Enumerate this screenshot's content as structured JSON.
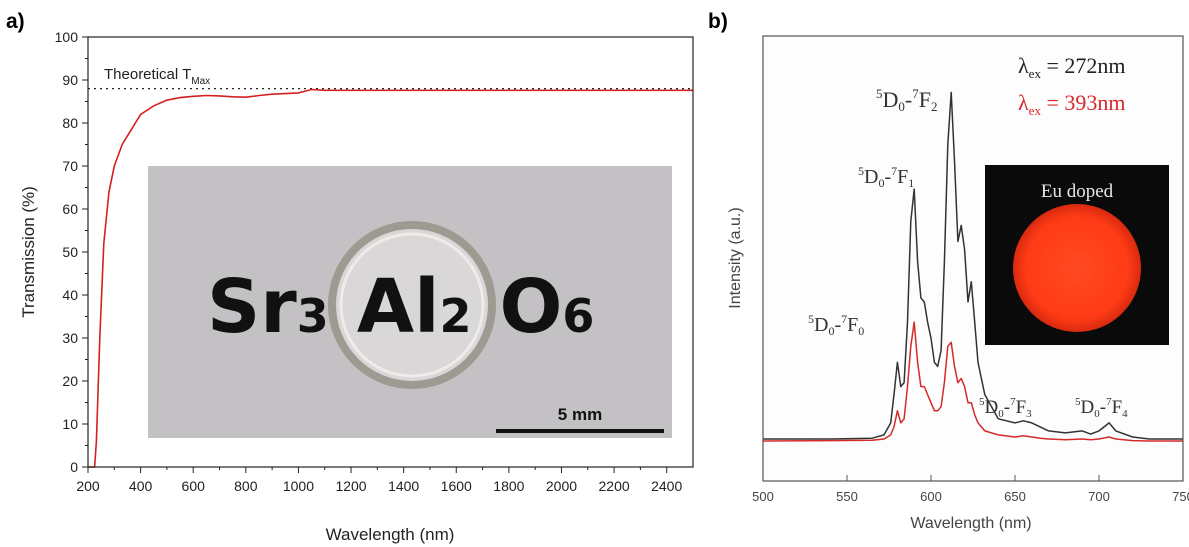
{
  "panels": {
    "a": {
      "label": "a)"
    },
    "b": {
      "label": "b)"
    }
  },
  "chart_data": [
    {
      "type": "line",
      "panel": "a",
      "xlabel": "Wavelength (nm)",
      "ylabel": "Transmission (%)",
      "xlim": [
        200,
        2500
      ],
      "ylim": [
        0,
        100
      ],
      "xticks": [
        200,
        400,
        600,
        800,
        1000,
        1200,
        1400,
        1600,
        1800,
        2000,
        2200,
        2400
      ],
      "yticks": [
        0,
        10,
        20,
        30,
        40,
        50,
        60,
        70,
        80,
        90,
        100
      ],
      "series": [
        {
          "color": "#d42020",
          "x": [
            200,
            225,
            232,
            245,
            260,
            280,
            300,
            330,
            360,
            400,
            450,
            500,
            550,
            600,
            650,
            700,
            750,
            800,
            850,
            900,
            1000,
            1050,
            1100,
            1200,
            1400,
            1600,
            1800,
            2000,
            2200,
            2400,
            2500
          ],
          "y": [
            0,
            0,
            6,
            30,
            52,
            64,
            70,
            75,
            78,
            82,
            84,
            85.3,
            85.9,
            86.2,
            86.4,
            86.3,
            86.1,
            86.0,
            86.4,
            86.7,
            87.0,
            87.8,
            87.6,
            87.6,
            87.6,
            87.6,
            87.6,
            87.6,
            87.6,
            87.6,
            87.6
          ]
        }
      ],
      "reference_line": {
        "y": 88,
        "style": "dotted",
        "label_main": "Theoretical T",
        "label_sub": "Max"
      },
      "inset": {
        "formula": [
          {
            "base": "Sr",
            "sub": "3"
          },
          {
            "base": "Al",
            "sub": "2"
          },
          {
            "base": "O",
            "sub": "6"
          }
        ],
        "scale_bar": "5 mm"
      }
    },
    {
      "type": "line",
      "panel": "b",
      "xlabel": "Wavelength (nm)",
      "ylabel": "Intensity (a.u.)",
      "xlim": [
        500,
        750
      ],
      "xticks": [
        500,
        550,
        600,
        650,
        700,
        750
      ],
      "xtick_labels": [
        "500",
        "550",
        "600",
        "650",
        "700",
        "750"
      ],
      "ylim": [
        0,
        1
      ],
      "series": [
        {
          "color": "#333333",
          "x": [
            500,
            540,
            565,
            572,
            576,
            578,
            580,
            582,
            584,
            586,
            588,
            590,
            592,
            594,
            596,
            598,
            600,
            602,
            604,
            606,
            608,
            610,
            612,
            614,
            616,
            618,
            620,
            622,
            624,
            626,
            628,
            632,
            640,
            650,
            655,
            660,
            665,
            670,
            680,
            690,
            695,
            700,
            706,
            710,
            720,
            730,
            750
          ],
          "y": [
            0.01,
            0.01,
            0.012,
            0.02,
            0.05,
            0.12,
            0.2,
            0.14,
            0.15,
            0.3,
            0.55,
            0.63,
            0.45,
            0.36,
            0.35,
            0.3,
            0.26,
            0.2,
            0.19,
            0.23,
            0.45,
            0.74,
            0.87,
            0.7,
            0.5,
            0.54,
            0.48,
            0.35,
            0.4,
            0.3,
            0.2,
            0.12,
            0.06,
            0.05,
            0.055,
            0.05,
            0.04,
            0.03,
            0.025,
            0.03,
            0.022,
            0.03,
            0.05,
            0.03,
            0.015,
            0.01,
            0.01
          ]
        },
        {
          "color": "#d62a2a",
          "x": [
            500,
            540,
            565,
            572,
            576,
            578,
            580,
            582,
            584,
            586,
            588,
            590,
            592,
            594,
            596,
            598,
            600,
            602,
            604,
            606,
            608,
            610,
            612,
            614,
            616,
            618,
            620,
            622,
            624,
            626,
            628,
            632,
            640,
            650,
            655,
            660,
            665,
            670,
            680,
            690,
            695,
            700,
            706,
            710,
            720,
            730,
            750
          ],
          "y": [
            0.005,
            0.006,
            0.007,
            0.01,
            0.02,
            0.04,
            0.08,
            0.05,
            0.06,
            0.14,
            0.24,
            0.3,
            0.2,
            0.14,
            0.14,
            0.12,
            0.1,
            0.08,
            0.08,
            0.09,
            0.15,
            0.24,
            0.25,
            0.19,
            0.15,
            0.16,
            0.14,
            0.1,
            0.1,
            0.07,
            0.05,
            0.03,
            0.02,
            0.015,
            0.018,
            0.015,
            0.012,
            0.01,
            0.008,
            0.01,
            0.008,
            0.01,
            0.015,
            0.01,
            0.006,
            0.005,
            0.005
          ]
        }
      ],
      "annotations": [
        {
          "id": "f0",
          "text": "5D0-7F0",
          "sup1": "5",
          "main1": "D",
          "sub1": "0",
          "sup2": "7",
          "main2": "F",
          "sub2": "0"
        },
        {
          "id": "f1",
          "text": "5D0-7F1",
          "sup1": "5",
          "main1": "D",
          "sub1": "0",
          "sup2": "7",
          "main2": "F",
          "sub2": "1"
        },
        {
          "id": "f2",
          "text": "5D0-7F2",
          "sup1": "5",
          "main1": "D",
          "sub1": "0",
          "sup2": "7",
          "main2": "F",
          "sub2": "2"
        },
        {
          "id": "f3",
          "text": "5D0-7F3",
          "sup1": "5",
          "main1": "D",
          "sub1": "0",
          "sup2": "7",
          "main2": "F",
          "sub2": "3"
        },
        {
          "id": "f4",
          "text": "5D0-7F4",
          "sup1": "5",
          "main1": "D",
          "sub1": "0",
          "sup2": "7",
          "main2": "F",
          "sub2": "4"
        }
      ],
      "legend": [
        {
          "lambda": "λ",
          "sub": "ex",
          "value": " = 272nm",
          "color": "#222222"
        },
        {
          "lambda": "λ",
          "sub": "ex",
          "value": " = 393nm",
          "color": "#d62a2a"
        }
      ],
      "inset": {
        "label": "Eu doped",
        "glow_color": "#ff3b1a"
      }
    }
  ]
}
